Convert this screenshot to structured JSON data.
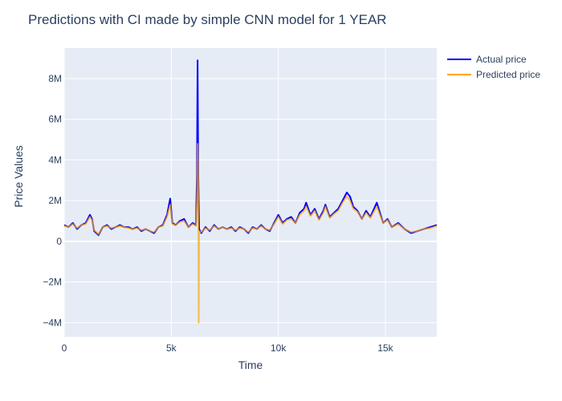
{
  "chart_data": {
    "type": "line",
    "title": "Predictions with CI made by simple CNN model for 1 YEAR",
    "xlabel": "Time",
    "ylabel": "Price Values",
    "xlim": [
      0,
      17400
    ],
    "ylim": [
      -4700000,
      9500000
    ],
    "x_ticks": [
      0,
      5000,
      10000,
      15000
    ],
    "x_tick_labels": [
      "0",
      "5k",
      "10k",
      "15k"
    ],
    "y_ticks": [
      -4000000,
      -2000000,
      0,
      2000000,
      4000000,
      6000000,
      8000000
    ],
    "y_tick_labels": [
      "−4M",
      "−2M",
      "0",
      "2M",
      "4M",
      "6M",
      "8M"
    ],
    "grid": true,
    "legend_position": "top-right",
    "colors": {
      "plot_bg": "#e5ecf6",
      "grid": "#ffffff",
      "actual": "#0000ff",
      "predicted": "#ffa500",
      "text": "#2a3f5f"
    },
    "series": [
      {
        "name": "Actual price",
        "color": "#0000ff",
        "x": [
          0,
          200,
          400,
          600,
          800,
          1000,
          1200,
          1300,
          1400,
          1600,
          1800,
          2000,
          2200,
          2400,
          2600,
          2800,
          3000,
          3200,
          3400,
          3600,
          3800,
          4000,
          4200,
          4400,
          4600,
          4800,
          4950,
          5050,
          5200,
          5400,
          5600,
          5800,
          6000,
          6150,
          6200,
          6230,
          6260,
          6300,
          6400,
          6600,
          6800,
          7000,
          7200,
          7400,
          7600,
          7800,
          8000,
          8200,
          8400,
          8600,
          8800,
          9000,
          9200,
          9400,
          9600,
          9800,
          10000,
          10200,
          10400,
          10600,
          10800,
          11000,
          11200,
          11300,
          11500,
          11700,
          11900,
          12100,
          12200,
          12400,
          12600,
          12800,
          13000,
          13200,
          13350,
          13500,
          13700,
          13900,
          14100,
          14300,
          14600,
          14900,
          15100,
          15300,
          15600,
          15900,
          16200,
          16500,
          16800,
          17100,
          17400
        ],
        "values": [
          800000,
          700000,
          900000,
          600000,
          800000,
          900000,
          1300000,
          1100000,
          500000,
          300000,
          700000,
          800000,
          600000,
          700000,
          800000,
          700000,
          700000,
          600000,
          700000,
          500000,
          600000,
          500000,
          400000,
          700000,
          800000,
          1300000,
          2100000,
          900000,
          800000,
          1000000,
          1100000,
          700000,
          900000,
          800000,
          3200000,
          8900000,
          3500000,
          600000,
          400000,
          700000,
          500000,
          800000,
          600000,
          700000,
          600000,
          700000,
          500000,
          700000,
          600000,
          400000,
          700000,
          600000,
          800000,
          600000,
          500000,
          900000,
          1300000,
          900000,
          1100000,
          1200000,
          900000,
          1400000,
          1600000,
          1900000,
          1300000,
          1600000,
          1100000,
          1500000,
          1800000,
          1200000,
          1400000,
          1600000,
          2000000,
          2400000,
          2200000,
          1700000,
          1500000,
          1100000,
          1500000,
          1200000,
          1900000,
          900000,
          1100000,
          700000,
          900000,
          600000,
          400000,
          500000,
          600000,
          700000,
          800000
        ]
      },
      {
        "name": "Predicted price",
        "color": "#ffa500",
        "x": [
          0,
          200,
          400,
          600,
          800,
          1000,
          1200,
          1300,
          1400,
          1600,
          1800,
          2000,
          2200,
          2400,
          2600,
          2800,
          3000,
          3200,
          3400,
          3600,
          3800,
          4000,
          4200,
          4400,
          4600,
          4800,
          4950,
          5050,
          5200,
          5400,
          5600,
          5800,
          6000,
          6150,
          6200,
          6230,
          6260,
          6280,
          6300,
          6400,
          6600,
          6800,
          7000,
          7200,
          7400,
          7600,
          7800,
          8000,
          8200,
          8400,
          8600,
          8800,
          9000,
          9200,
          9400,
          9600,
          9800,
          10000,
          10200,
          10400,
          10600,
          10800,
          11000,
          11200,
          11300,
          11500,
          11700,
          11900,
          12100,
          12200,
          12400,
          12600,
          12800,
          13000,
          13200,
          13350,
          13500,
          13700,
          13900,
          14100,
          14300,
          14600,
          14900,
          15100,
          15300,
          15600,
          15900,
          16200,
          16500,
          16800,
          17100,
          17400
        ],
        "values": [
          750000,
          700000,
          850000,
          650000,
          800000,
          850000,
          1200000,
          1050000,
          550000,
          350000,
          700000,
          750000,
          650000,
          700000,
          750000,
          700000,
          650000,
          600000,
          650000,
          550000,
          600000,
          500000,
          450000,
          700000,
          750000,
          1200000,
          1800000,
          850000,
          800000,
          950000,
          1000000,
          700000,
          850000,
          750000,
          2000000,
          4800000,
          3000000,
          -4000000,
          500000,
          450000,
          650000,
          550000,
          750000,
          600000,
          700000,
          600000,
          650000,
          550000,
          650000,
          600000,
          450000,
          650000,
          600000,
          750000,
          600000,
          550000,
          850000,
          1200000,
          850000,
          1050000,
          1100000,
          900000,
          1300000,
          1500000,
          1700000,
          1250000,
          1500000,
          1050000,
          1400000,
          1700000,
          1150000,
          1350000,
          1500000,
          1900000,
          2200000,
          2000000,
          1600000,
          1450000,
          1100000,
          1400000,
          1150000,
          1700000,
          900000,
          1050000,
          700000,
          850000,
          600000,
          450000,
          500000,
          600000,
          650000,
          750000
        ]
      }
    ]
  }
}
